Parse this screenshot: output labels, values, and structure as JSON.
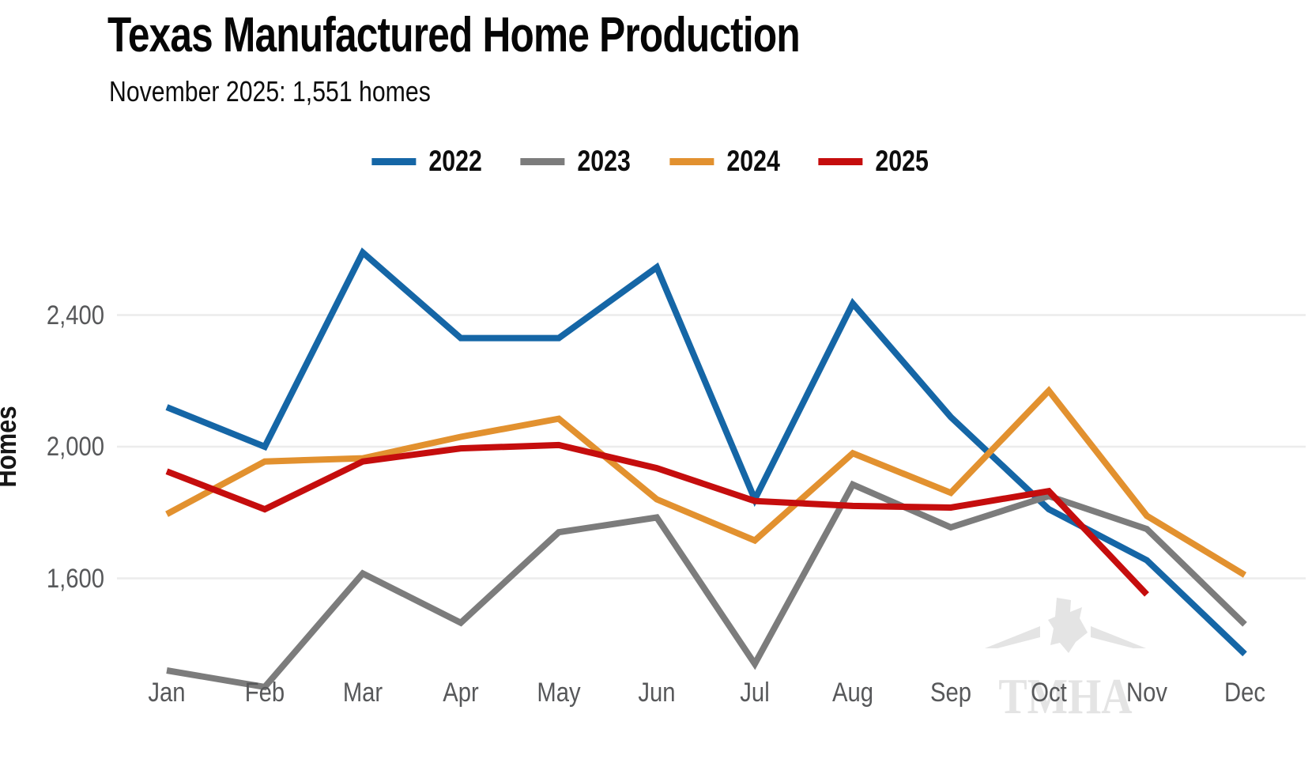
{
  "header": {
    "title": "Texas Manufactured Home Production",
    "subtitle": "November 2025: 1,551 homes"
  },
  "watermark": {
    "text": "TMHA"
  },
  "chart_data": {
    "type": "line",
    "title": "Texas Manufactured Home Production",
    "subtitle": "November 2025: 1,551 homes",
    "xlabel": "",
    "ylabel": "Homes",
    "categories": [
      "Jan",
      "Feb",
      "Mar",
      "Apr",
      "May",
      "Jun",
      "Jul",
      "Aug",
      "Sep",
      "Oct",
      "Nov",
      "Dec"
    ],
    "yticks": [
      1600,
      2000,
      2400
    ],
    "ytick_labels": [
      "1,600",
      "2,000",
      "2,400"
    ],
    "ylim": [
      1130,
      2720
    ],
    "grid": "horizontal-only",
    "legend_position": "top-center",
    "gridline_color": "#ececec",
    "series": [
      {
        "name": "2022",
        "color": "#1566a6",
        "values": [
          2120,
          2000,
          2590,
          2330,
          2330,
          2545,
          1840,
          2435,
          2090,
          1810,
          1655,
          1370
        ]
      },
      {
        "name": "2023",
        "color": "#7c7c7c",
        "values": [
          1320,
          1270,
          1615,
          1465,
          1740,
          1785,
          1340,
          1885,
          1755,
          1850,
          1750,
          1460
        ]
      },
      {
        "name": "2024",
        "color": "#e2912f",
        "values": [
          1795,
          1955,
          1965,
          2030,
          2085,
          1840,
          1715,
          1980,
          1860,
          2170,
          1790,
          1610
        ]
      },
      {
        "name": "2025",
        "color": "#c50d0d",
        "values": [
          1925,
          1810,
          1955,
          1995,
          2005,
          1935,
          1835,
          1820,
          1815,
          1865,
          1551,
          null
        ]
      }
    ],
    "annotations": "2025 line ends at November (1,551 homes); no December value"
  }
}
